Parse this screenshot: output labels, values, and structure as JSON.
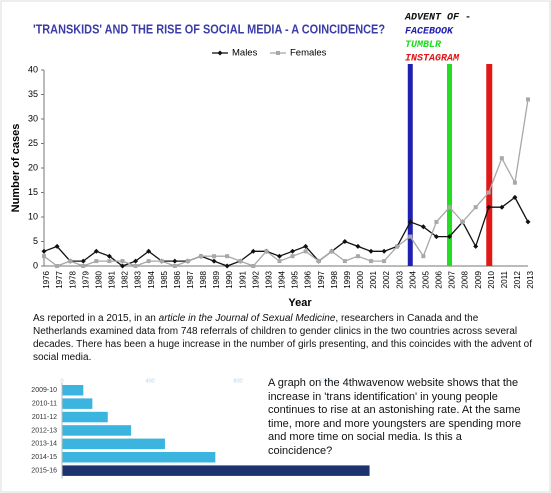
{
  "chart_data": [
    {
      "type": "line",
      "title": "'TRANSKIDS' AND THE RISE OF SOCIAL MEDIA - A COINCIDENCE?",
      "x_label": "Year",
      "y_label": "Number of cases",
      "categories": [
        "1976",
        "1977",
        "1978",
        "1979",
        "1980",
        "1981",
        "1982",
        "1983",
        "1984",
        "1985",
        "1986",
        "1987",
        "1988",
        "1989",
        "1990",
        "1991",
        "1992",
        "1993",
        "1994",
        "1995",
        "1996",
        "1997",
        "1998",
        "1999",
        "2000",
        "2001",
        "2002",
        "2003",
        "2004",
        "2005",
        "2006",
        "2007",
        "2008",
        "2009",
        "2010",
        "2011",
        "2012",
        "2013"
      ],
      "series": [
        {
          "name": "Males",
          "color": "#111111",
          "values": [
            3,
            4,
            1,
            1,
            3,
            2,
            0,
            1,
            3,
            1,
            1,
            1,
            2,
            1,
            0,
            1,
            3,
            3,
            2,
            3,
            4,
            1,
            3,
            5,
            4,
            3,
            3,
            4,
            9,
            8,
            6,
            6,
            9,
            4,
            12,
            12,
            14,
            9
          ]
        },
        {
          "name": "Females",
          "color": "#a8a8a8",
          "values": [
            2,
            0,
            1,
            0,
            1,
            1,
            1,
            0,
            1,
            1,
            0,
            1,
            2,
            2,
            2,
            1,
            0,
            3,
            1,
            2,
            3,
            1,
            3,
            1,
            2,
            1,
            1,
            4,
            6,
            2,
            9,
            12,
            9,
            12,
            15,
            22,
            17,
            34
          ]
        }
      ],
      "ylim": [
        0,
        40
      ],
      "yticks": [
        0,
        5,
        10,
        15,
        20,
        25,
        30,
        35,
        40
      ],
      "legend": "top",
      "annotation_title": "ADVENT OF -",
      "annotations": [
        {
          "label": "FACEBOOK",
          "x": "2004",
          "color": "#1f1fb0"
        },
        {
          "label": "TUMBLR",
          "x": "2007",
          "color": "#22dd22"
        },
        {
          "label": "INSTAGRAM",
          "x": "2010",
          "color": "#e01818"
        }
      ]
    },
    {
      "type": "hbar",
      "categories": [
        "2009-10",
        "2010-11",
        "2011-12",
        "2012-13",
        "2013-14",
        "2014-15",
        "2015-16"
      ],
      "values": [
        97,
        138,
        208,
        314,
        468,
        697,
        1398
      ],
      "colors": [
        "#3cb4e0",
        "#3cb4e0",
        "#3cb4e0",
        "#3cb4e0",
        "#3cb4e0",
        "#3cb4e0",
        "#1b3470"
      ],
      "xlim": [
        0,
        1400
      ],
      "xticks": [
        0,
        400,
        800,
        1200
      ]
    }
  ],
  "article": {
    "parts": [
      "As reported in a 2015, in an ",
      "article in the Journal of Sexual Medicine",
      ", researchers in Canada and the Netherlands examined data from 748 referrals of children to gender clinics in the two countries across several decades. There has been a huge increase in the number of girls presenting, and this coincides with the advent of social media."
    ]
  },
  "side_text": "A graph on the 4thwavenow website shows that the increase in 'trans identification' in young people continues to rise at an astonishing rate. At the same time, more and more youngsters are spending more and more time on social media. Is this a coincidence?"
}
